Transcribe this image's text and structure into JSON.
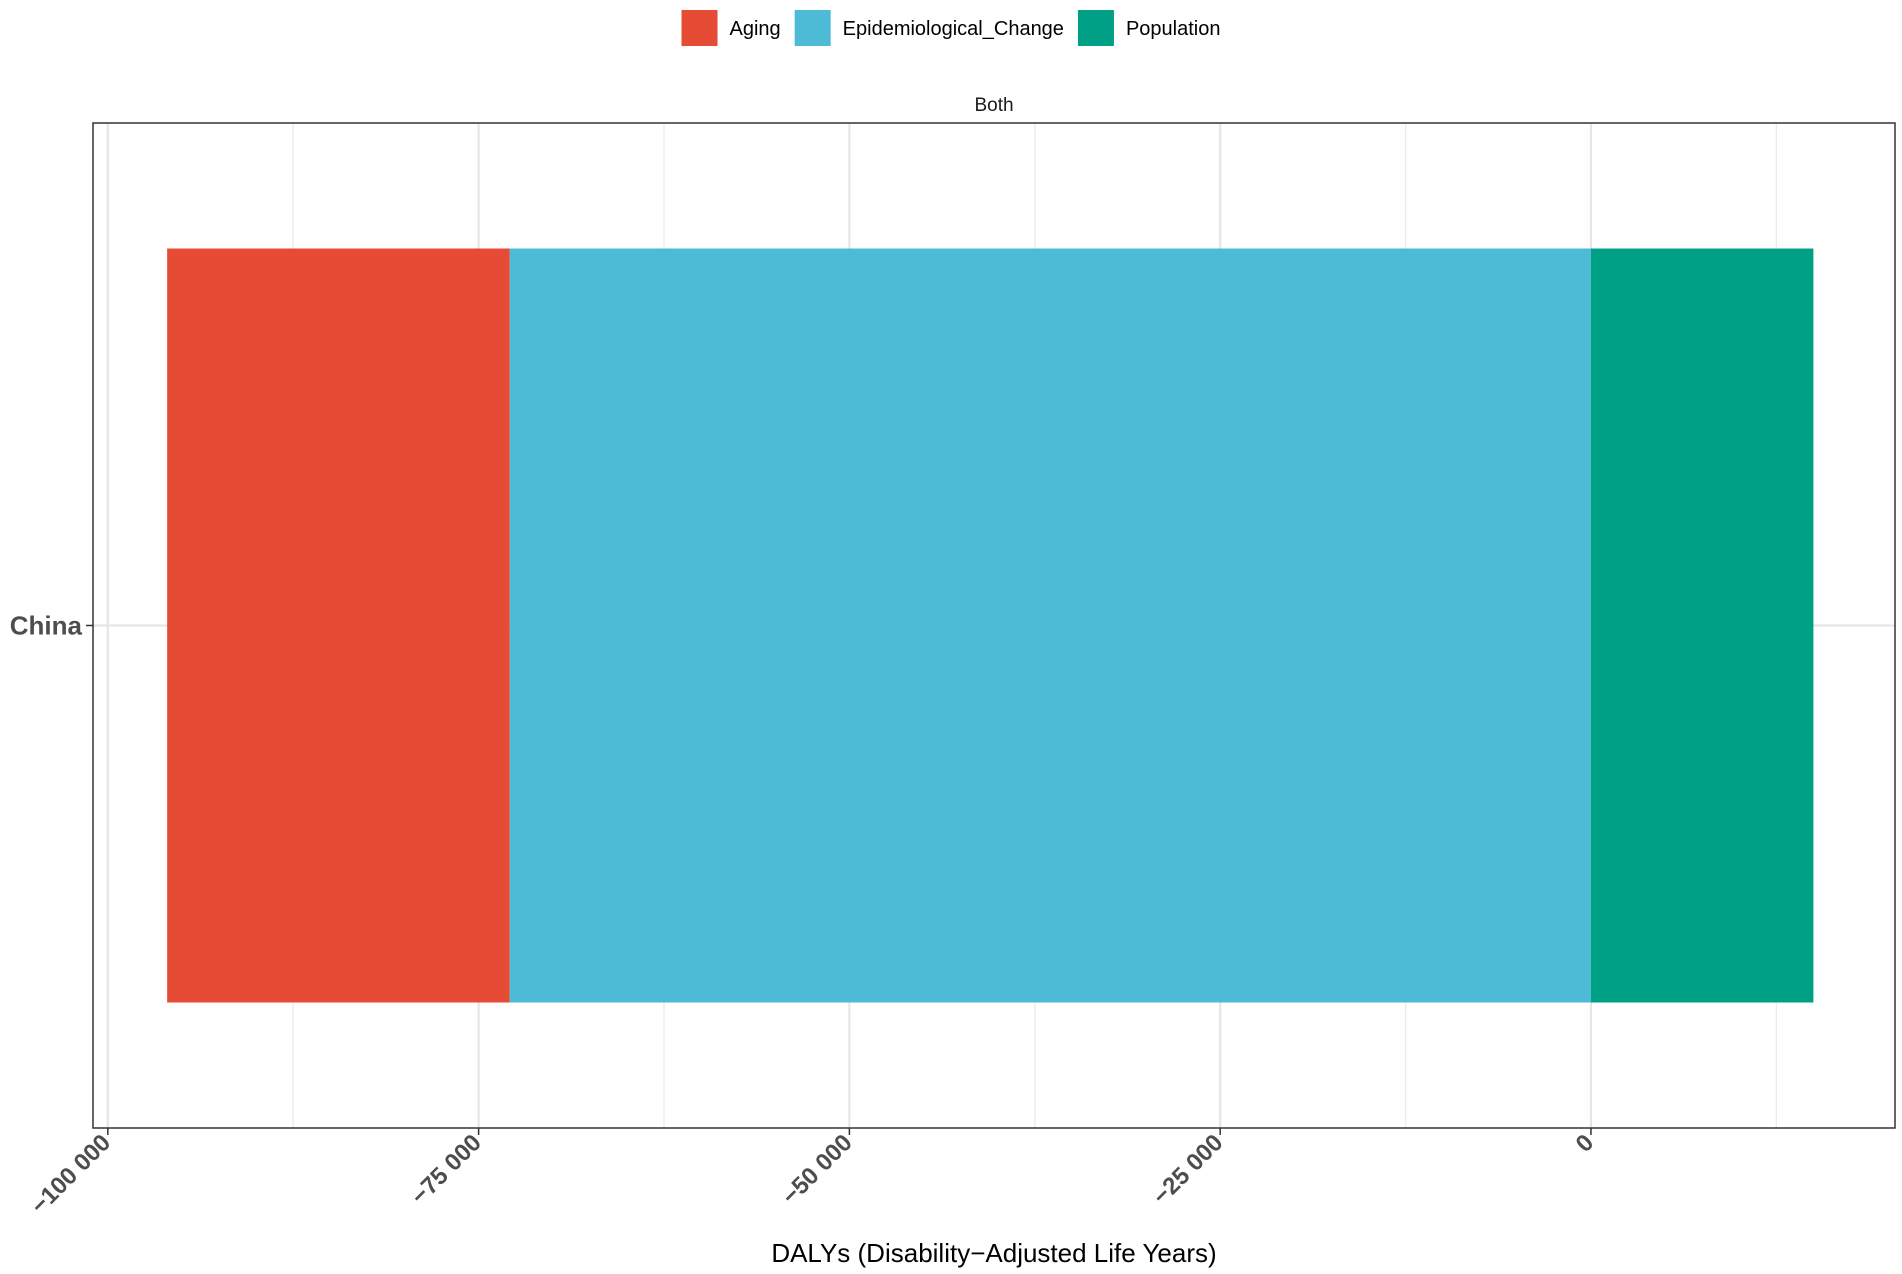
{
  "chart_data": {
    "type": "bar",
    "orientation": "horizontal",
    "stacked": true,
    "facet": "Both",
    "categories": [
      "China"
    ],
    "series": [
      {
        "name": "Aging",
        "values": [
          -23100
        ],
        "range": [
          -96000,
          -72900
        ],
        "color": "#E64B35"
      },
      {
        "name": "Epidemiological_Change",
        "values": [
          -72900
        ],
        "range": [
          -72900,
          0
        ],
        "color": "#4DBBD5"
      },
      {
        "name": "Population",
        "values": [
          15000
        ],
        "range": [
          0,
          15000
        ],
        "color": "#00A087"
      }
    ],
    "xlabel": "DALYs (Disability−Adjusted Life Years)",
    "ylabel": "",
    "xlim": [
      -101000,
      20500
    ],
    "xticks": [
      {
        "value": -100000,
        "label": "−100 000"
      },
      {
        "value": -75000,
        "label": "−75 000"
      },
      {
        "value": -50000,
        "label": "−50 000"
      },
      {
        "value": -25000,
        "label": "−25 000"
      },
      {
        "value": 0,
        "label": "0"
      }
    ],
    "minor_gridlines": [
      -87500,
      -62500,
      -37500,
      -12500,
      12500
    ],
    "grid": true,
    "legend_position": "top"
  }
}
